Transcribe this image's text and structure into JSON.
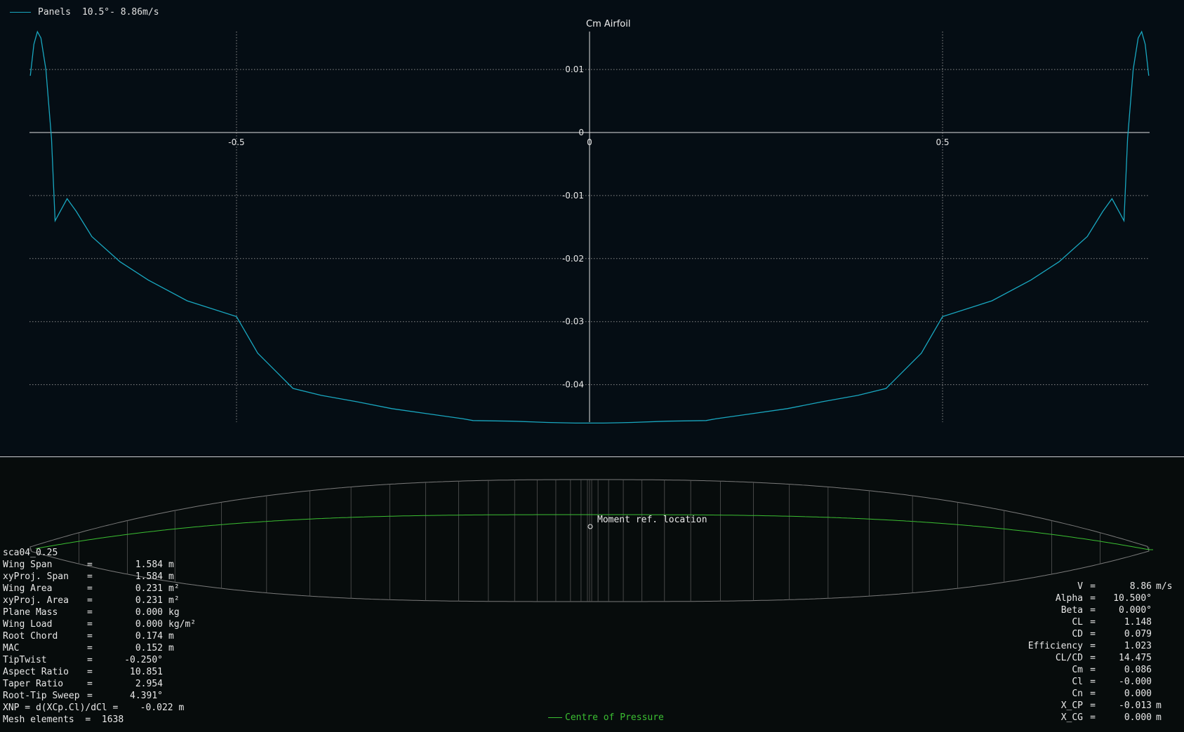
{
  "legend": {
    "name": "Panels",
    "condition": "10.5°- 8.86m/s",
    "color": "#19a7c0"
  },
  "chart_data": {
    "type": "line",
    "title": "Cm Airfoil",
    "xlim": [
      -0.792,
      0.792
    ],
    "ylim": [
      -0.046,
      0.016
    ],
    "x_ticks": [
      "-0.5",
      "0",
      "0.5"
    ],
    "x_tick_values": [
      -0.5,
      0,
      0.5
    ],
    "y_ticks": [
      "0.01",
      "0",
      "-0.01",
      "-0.02",
      "-0.03",
      "-0.04"
    ],
    "y_tick_values": [
      0.01,
      0,
      -0.01,
      -0.02,
      -0.03,
      -0.04
    ],
    "grid": true,
    "series": [
      {
        "name": "Panels",
        "x": [
          -0.792,
          -0.787,
          -0.782,
          -0.777,
          -0.77,
          -0.762,
          -0.757,
          -0.74,
          -0.727,
          -0.705,
          -0.665,
          -0.625,
          -0.57,
          -0.5,
          -0.47,
          -0.42,
          -0.38,
          -0.33,
          -0.28,
          -0.23,
          -0.18,
          -0.165,
          -0.11,
          -0.06,
          -0.02,
          0,
          0.02,
          0.06,
          0.11,
          0.165,
          0.18,
          0.23,
          0.28,
          0.33,
          0.38,
          0.42,
          0.47,
          0.5,
          0.57,
          0.625,
          0.665,
          0.705,
          0.727,
          0.74,
          0.757,
          0.762,
          0.77,
          0.777,
          0.782,
          0.787,
          0.792
        ],
        "y": [
          0.009,
          0.014,
          0.016,
          0.015,
          0.01,
          -0.001,
          -0.014,
          -0.0105,
          -0.0125,
          -0.0165,
          -0.0205,
          -0.0234,
          -0.0267,
          -0.0292,
          -0.035,
          -0.0406,
          -0.0417,
          -0.0427,
          -0.0438,
          -0.0446,
          -0.0454,
          -0.0457,
          -0.0458,
          -0.046,
          -0.0461,
          -0.0461,
          -0.0461,
          -0.046,
          -0.0458,
          -0.0457,
          -0.0454,
          -0.0446,
          -0.0438,
          -0.0427,
          -0.0417,
          -0.0406,
          -0.035,
          -0.0292,
          -0.0267,
          -0.0234,
          -0.0205,
          -0.0165,
          -0.0125,
          -0.0105,
          -0.014,
          -0.001,
          0.01,
          0.015,
          0.016,
          0.014,
          0.009
        ]
      }
    ]
  },
  "wing": {
    "name": "sca04_0.25",
    "props": [
      {
        "label": "Wing Span",
        "eq": "=",
        "value": "1.584",
        "unit": "m"
      },
      {
        "label": "xyProj. Span",
        "eq": "=",
        "value": "1.584",
        "unit": "m"
      },
      {
        "label": "Wing Area",
        "eq": "=",
        "value": "0.231",
        "unit": "m²"
      },
      {
        "label": "xyProj. Area",
        "eq": "=",
        "value": "0.231",
        "unit": "m²"
      },
      {
        "label": "Plane Mass",
        "eq": "=",
        "value": "0.000",
        "unit": "kg"
      },
      {
        "label": "Wing Load",
        "eq": "=",
        "value": "0.000",
        "unit": "kg/m²"
      },
      {
        "label": "Root Chord",
        "eq": "=",
        "value": "0.174",
        "unit": "m"
      },
      {
        "label": "MAC",
        "eq": "=",
        "value": "0.152",
        "unit": "m"
      },
      {
        "label": "TipTwist",
        "eq": "=",
        "value": "-0.250°",
        "unit": ""
      },
      {
        "label": "Aspect Ratio",
        "eq": "=",
        "value": "10.851",
        "unit": ""
      },
      {
        "label": "Taper Ratio",
        "eq": "=",
        "value": "2.954",
        "unit": ""
      },
      {
        "label": "Root-Tip Sweep",
        "eq": "=",
        "value": "4.391°",
        "unit": ""
      }
    ],
    "xnp": "XNP = d(XCp.Cl)/dCl =    -0.022 m",
    "mesh": "Mesh elements  =  1638"
  },
  "results": [
    {
      "label": "V",
      "value": "8.86",
      "unit": "m/s"
    },
    {
      "label": "Alpha",
      "value": "10.500°",
      "unit": ""
    },
    {
      "label": "Beta",
      "value": "0.000°",
      "unit": ""
    },
    {
      "label": "CL",
      "value": "1.148",
      "unit": ""
    },
    {
      "label": "CD",
      "value": "0.079",
      "unit": ""
    },
    {
      "label": "Efficiency",
      "value": "1.023",
      "unit": ""
    },
    {
      "label": "CL/CD",
      "value": "14.475",
      "unit": ""
    },
    {
      "label": "Cm",
      "value": "0.086",
      "unit": ""
    },
    {
      "label": "Cl",
      "value": "-0.000",
      "unit": ""
    },
    {
      "label": "Cn",
      "value": "0.000",
      "unit": ""
    },
    {
      "label": "X_CP",
      "value": "-0.013",
      "unit": "m"
    },
    {
      "label": "X_CG",
      "value": "0.000",
      "unit": "m"
    }
  ],
  "labels": {
    "moment_ref": "Moment ref. location",
    "cop": "Centre of Pressure"
  },
  "colors": {
    "grid": "#8a8a8a",
    "axis": "#e0e0e0",
    "curve": "#19a7c0",
    "cop": "#3bbf32",
    "wing_outline": "#7a7a7a"
  }
}
